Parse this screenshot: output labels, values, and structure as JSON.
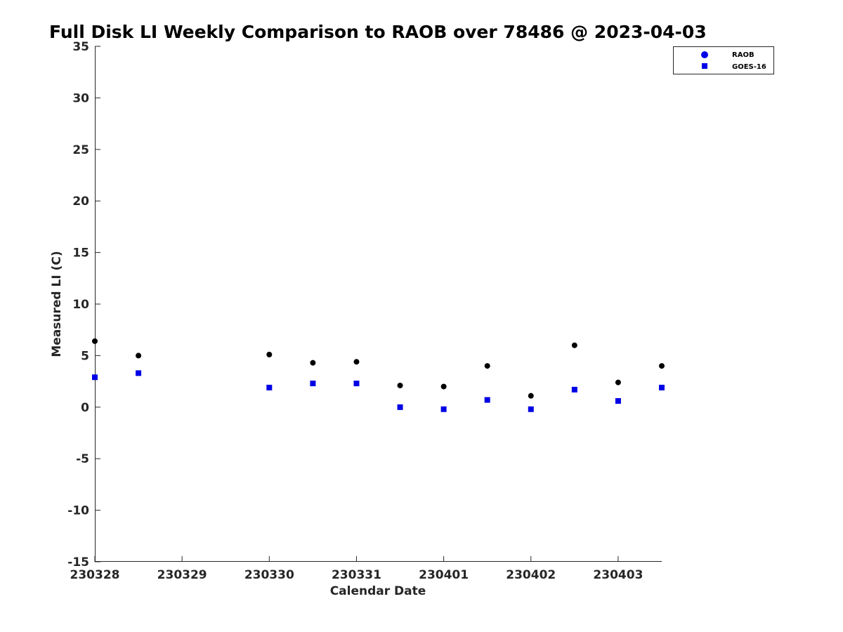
{
  "chart_data": {
    "type": "scatter",
    "title": "Full Disk LI Weekly Comparison to RAOB over 78486 @ 2023-04-03",
    "xlabel": "Calendar Date",
    "ylabel": "Measured LI (C)",
    "ylim": [
      -15,
      35
    ],
    "yticks": [
      "35",
      "30",
      "25",
      "20",
      "15",
      "10",
      "5",
      "0",
      "-5",
      "-10",
      "-15"
    ],
    "yticks_values": [
      35,
      30,
      25,
      20,
      15,
      10,
      5,
      0,
      -5,
      -10,
      -15
    ],
    "xticks": [
      "230328",
      "230329",
      "230330",
      "230331",
      "230401",
      "230402",
      "230403"
    ],
    "xlim_days": [
      0,
      6.5
    ],
    "grid": false,
    "legend_position": "top-right",
    "series": [
      {
        "name": "RAOB",
        "marker": "circle",
        "color": "#000000",
        "legend_color": "#0000e6",
        "x": [
          "2023-03-28 00Z",
          "2023-03-28 12Z",
          "2023-03-30 00Z",
          "2023-03-30 12Z",
          "2023-03-31 00Z",
          "2023-03-31 12Z",
          "2023-04-01 00Z",
          "2023-04-01 12Z",
          "2023-04-02 00Z",
          "2023-04-02 12Z",
          "2023-04-03 00Z",
          "2023-04-03 12Z"
        ],
        "values": [
          6.4,
          5.0,
          5.1,
          4.3,
          4.4,
          2.1,
          2.0,
          4.0,
          1.1,
          6.0,
          2.4,
          4.0
        ]
      },
      {
        "name": "GOES-16",
        "marker": "square",
        "color": "#0000e6",
        "legend_color": "#0000e6",
        "x": [
          "2023-03-28 00Z",
          "2023-03-28 12Z",
          "2023-03-30 00Z",
          "2023-03-30 12Z",
          "2023-03-31 00Z",
          "2023-03-31 12Z",
          "2023-04-01 00Z",
          "2023-04-01 12Z",
          "2023-04-02 00Z",
          "2023-04-02 12Z",
          "2023-04-03 00Z",
          "2023-04-03 12Z"
        ],
        "values": [
          2.9,
          3.3,
          1.9,
          2.3,
          2.3,
          0.0,
          -0.2,
          0.7,
          -0.2,
          1.7,
          0.6,
          1.9
        ]
      }
    ]
  }
}
